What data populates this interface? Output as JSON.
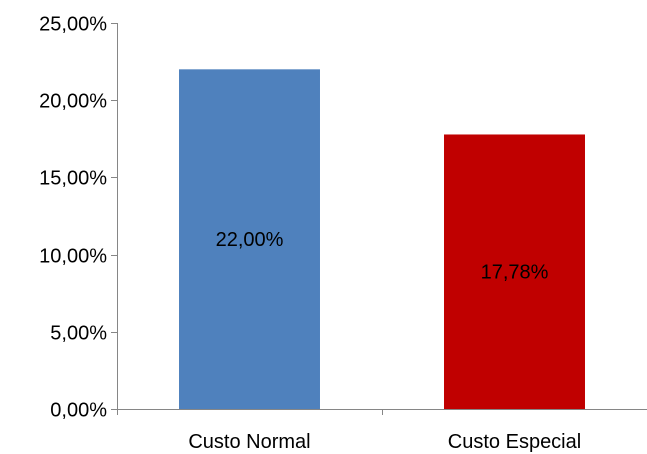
{
  "chart_data": {
    "type": "bar",
    "categories": [
      "Custo Normal",
      "Custo Especial"
    ],
    "values": [
      22.0,
      17.78
    ],
    "value_labels": [
      "22,00%",
      "17,78%"
    ],
    "colors": [
      "#4f81bd",
      "#c00000"
    ],
    "ylim": [
      0,
      25
    ],
    "y_ticks": [
      0,
      5,
      10,
      15,
      20,
      25
    ],
    "y_tick_labels": [
      "0,00%",
      "5,00%",
      "10,00%",
      "15,00%",
      "20,00%",
      "25,00%"
    ],
    "grid": false,
    "legend": "none"
  }
}
